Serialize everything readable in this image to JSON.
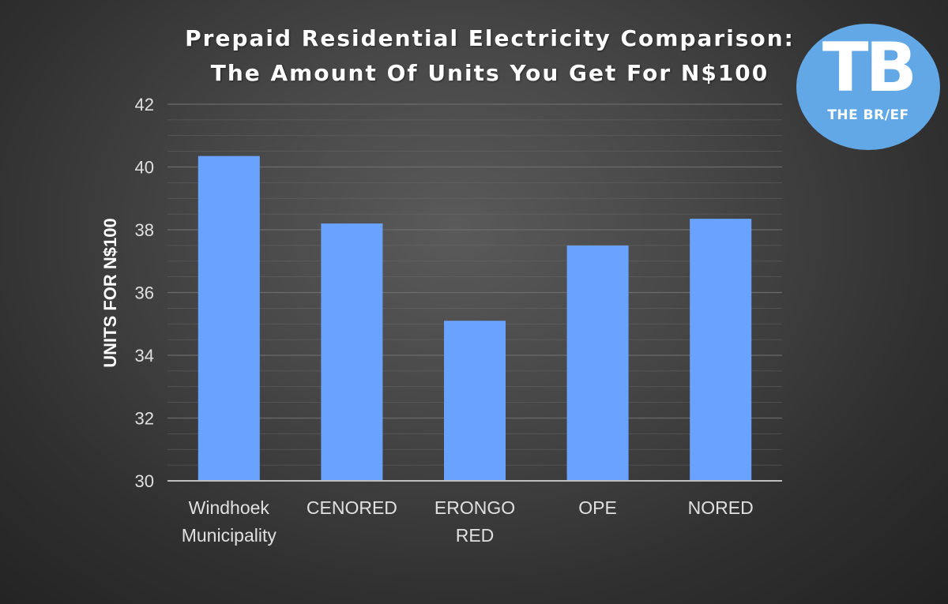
{
  "title_line1": "Prepaid Residential Electricity Comparison:",
  "title_line2": "The Amount Of Units You Get For N$100",
  "logo": {
    "mark": "TB",
    "name": "THE BR/EF",
    "color": "#62a8e6"
  },
  "colors": {
    "bar": "#6aa3ff",
    "axis_text": "#e0e0e0",
    "gridline": "#6f6f6f",
    "baseline": "#bfbfbf"
  },
  "chart_data": {
    "type": "bar",
    "categories": [
      [
        "Windhoek",
        "Municipality"
      ],
      [
        "CENORED"
      ],
      [
        "ERONGO",
        "RED"
      ],
      [
        "OPE"
      ],
      [
        "NORED"
      ]
    ],
    "values": [
      40.35,
      38.2,
      35.1,
      37.5,
      38.35
    ],
    "title": "Prepaid Residential Electricity Comparison: The Amount Of Units You Get For N$100",
    "xlabel": "",
    "ylabel": "UNITS FOR N$100",
    "ylim": [
      30,
      42
    ],
    "yticks": [
      30,
      32,
      34,
      36,
      38,
      40,
      42
    ],
    "grid": true,
    "legend": "none"
  }
}
